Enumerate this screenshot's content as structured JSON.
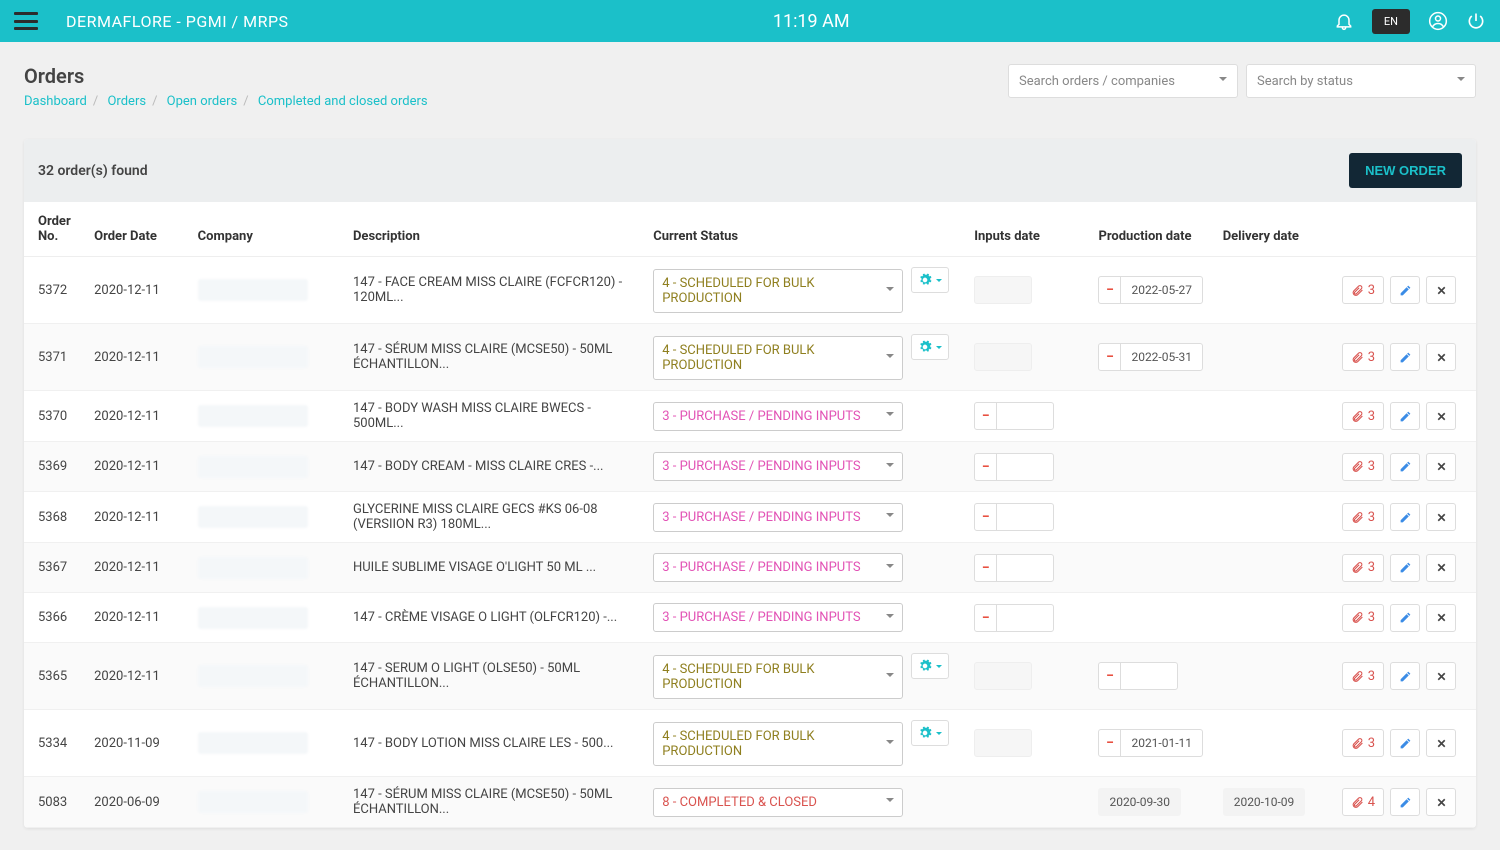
{
  "topbar": {
    "app_title": "DERMAFLORE - PGMI / MRPS",
    "time": "11:19 AM",
    "lang": "EN"
  },
  "page": {
    "title": "Orders",
    "breadcrumb": [
      "Dashboard",
      "Orders",
      "Open orders",
      "Completed and closed orders"
    ]
  },
  "filters": {
    "search_placeholder": "Search orders / companies",
    "status_placeholder": "Search by status"
  },
  "card": {
    "count_text": "32 order(s) found",
    "new_label": "NEW ORDER"
  },
  "columns": {
    "order_no": "Order No.",
    "order_date": "Order Date",
    "company": "Company",
    "description": "Description",
    "status": "Current Status",
    "inputs": "Inputs date",
    "production": "Production date",
    "delivery": "Delivery date"
  },
  "status_labels": {
    "scheduled": "4 - SCHEDULED FOR BULK PRODUCTION",
    "pending": "3 - PURCHASE / PENDING INPUTS",
    "completed": "8 - COMPLETED & CLOSED"
  },
  "rows": [
    {
      "no": "5372",
      "date": "2020-12-11",
      "desc": "147 - FACE CREAM MISS CLAIRE (FCFCR120) - 120ML...",
      "status": "scheduled",
      "gear": true,
      "inputs_gray": true,
      "prod": "2022-05-27",
      "prod_mode": "minus",
      "attach": 3
    },
    {
      "no": "5371",
      "date": "2020-12-11",
      "desc": "147 - SÉRUM MISS CLAIRE (MCSE50) - 50ML ÉCHANTILLON...",
      "status": "scheduled",
      "gear": true,
      "inputs_gray": true,
      "prod": "2022-05-31",
      "prod_mode": "minus",
      "attach": 3
    },
    {
      "no": "5370",
      "date": "2020-12-11",
      "desc": "147 - BODY WASH MISS CLAIRE BWECS - 500ML...",
      "status": "pending",
      "inputs_mode": "minus_white",
      "attach": 3
    },
    {
      "no": "5369",
      "date": "2020-12-11",
      "desc": "147 - BODY CREAM - MISS CLAIRE CRES -...",
      "status": "pending",
      "inputs_mode": "minus_white",
      "attach": 3
    },
    {
      "no": "5368",
      "date": "2020-12-11",
      "desc": "GLYCERINE MISS CLAIRE GECS #KS 06-08 (VERSIION R3) 180ML...",
      "status": "pending",
      "inputs_mode": "minus_white",
      "attach": 3
    },
    {
      "no": "5367",
      "date": "2020-12-11",
      "desc": "HUILE SUBLIME VISAGE O'LIGHT 50 ML ...",
      "status": "pending",
      "inputs_mode": "minus_white",
      "attach": 3
    },
    {
      "no": "5366",
      "date": "2020-12-11",
      "desc": "147 - CRÈME VISAGE O LIGHT (OLFCR120) -...",
      "status": "pending",
      "inputs_mode": "minus_white",
      "attach": 3
    },
    {
      "no": "5365",
      "date": "2020-12-11",
      "desc": "147 - SERUM O LIGHT (OLSE50) - 50ML ÉCHANTILLON...",
      "status": "scheduled",
      "gear": true,
      "inputs_gray": true,
      "prod_mode": "minus_white",
      "attach": 3
    },
    {
      "no": "5334",
      "date": "2020-11-09",
      "desc": "147 - BODY LOTION MISS CLAIRE LES - 500...",
      "status": "scheduled",
      "gear": true,
      "inputs_gray": true,
      "prod": "2021-01-11",
      "prod_mode": "minus",
      "attach": 3
    },
    {
      "no": "5083",
      "date": "2020-06-09",
      "desc": "147 - SÉRUM MISS CLAIRE (MCSE50) - 50ML ÉCHANTILLON...",
      "status": "completed",
      "prod": "2020-09-30",
      "prod_mode": "plain",
      "delivery": "2020-10-09",
      "attach": 4
    }
  ]
}
